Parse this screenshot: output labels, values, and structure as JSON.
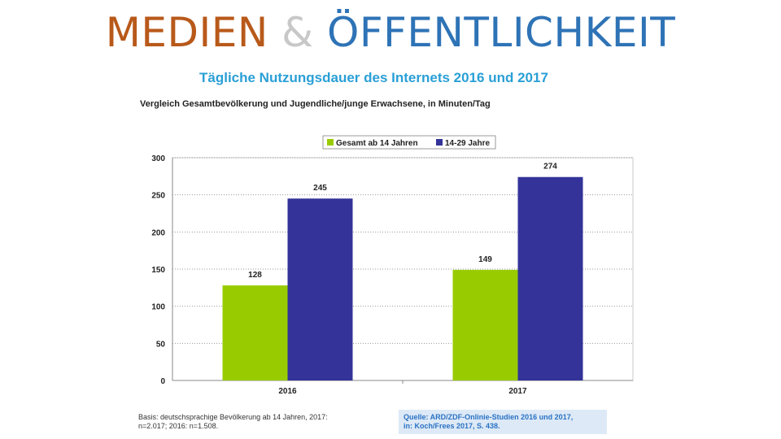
{
  "slide": {
    "title_part1": "MEDIEN",
    "title_part2": "&",
    "title_part3": "ÖFFENTLICHKEIT"
  },
  "footnotes": {
    "basis_line1": "Basis: deutschsprachige Bevölkerung ab 14 Jahren, 2017:",
    "basis_line2": "n=2.017; 2016: n=1.508.",
    "source_line1": "Quelle: ARD/ZDF-Onlinie-Studien 2016 und 2017,",
    "source_line2": "in: Koch/Frees 2017, S. 438."
  },
  "colors": {
    "series1": "#99cc00",
    "series2": "#333399",
    "grid": "#9a9a9a",
    "axis": "#888888"
  },
  "chart_data": {
    "type": "bar",
    "title": "Tägliche Nutzungsdauer des Internets 2016 und 2017",
    "subtitle": "Vergleich Gesamtbevölkerung und Jugendliche/junge Erwachsene, in Minuten/Tag",
    "categories": [
      "2016",
      "2017"
    ],
    "series": [
      {
        "name": "Gesamt ab 14 Jahren",
        "values": [
          128,
          149
        ]
      },
      {
        "name": "14-29 Jahre",
        "values": [
          245,
          274
        ]
      }
    ],
    "ylim": [
      0,
      300
    ],
    "yticks": [
      0,
      50,
      100,
      150,
      200,
      250,
      300
    ],
    "xlabel": "",
    "ylabel": "",
    "grid": true,
    "legend_position": "top-center"
  }
}
